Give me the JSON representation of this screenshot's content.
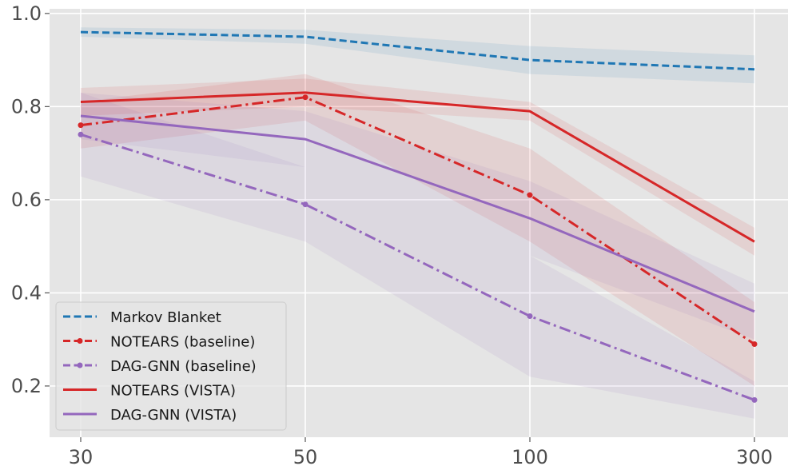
{
  "chart_data": {
    "type": "line",
    "title": "",
    "xlabel": "",
    "ylabel": "",
    "categories": [
      "30",
      "50",
      "100",
      "300"
    ],
    "ylim": [
      0.09,
      1.01
    ],
    "yticks": [
      0.2,
      0.4,
      0.6,
      0.8,
      1.0
    ],
    "ytick_labels": [
      "0.2",
      "0.4",
      "0.6",
      "0.8",
      "1.0"
    ],
    "grid": true,
    "legend_position": "bottom-left",
    "series": [
      {
        "name": "Markov Blanket",
        "color": "#1f77b4",
        "style": "dashed",
        "marker": "none",
        "values": [
          0.96,
          0.95,
          0.9,
          0.88
        ],
        "band_lower": [
          0.95,
          0.935,
          0.87,
          0.85
        ],
        "band_upper": [
          0.97,
          0.965,
          0.93,
          0.91
        ]
      },
      {
        "name": "NOTEARS (baseline)",
        "color": "#d62728",
        "style": "dashdot",
        "marker": "circle",
        "values": [
          0.76,
          0.82,
          0.61,
          0.29
        ],
        "band_lower": [
          0.71,
          0.77,
          0.51,
          0.2
        ],
        "band_upper": [
          0.81,
          0.87,
          0.71,
          0.38
        ]
      },
      {
        "name": "DAG-GNN (baseline)",
        "color": "#9467bd",
        "style": "dashdot",
        "marker": "circle",
        "values": [
          0.74,
          0.59,
          0.35,
          0.17
        ],
        "band_lower": [
          0.65,
          0.51,
          0.22,
          0.13
        ],
        "band_upper": [
          0.83,
          0.67,
          0.48,
          0.21
        ]
      },
      {
        "name": "NOTEARS (VISTA)",
        "color": "#d62728",
        "style": "solid",
        "marker": "none",
        "values": [
          0.81,
          0.83,
          0.79,
          0.51
        ],
        "band_lower": [
          0.78,
          0.8,
          0.77,
          0.48
        ],
        "band_upper": [
          0.84,
          0.86,
          0.81,
          0.54
        ]
      },
      {
        "name": "DAG-GNN (VISTA)",
        "color": "#9467bd",
        "style": "solid",
        "marker": "none",
        "values": [
          0.78,
          0.73,
          0.56,
          0.36
        ],
        "band_lower": [
          0.73,
          0.67,
          0.48,
          0.3
        ],
        "band_upper": [
          0.83,
          0.79,
          0.64,
          0.42
        ]
      }
    ]
  }
}
